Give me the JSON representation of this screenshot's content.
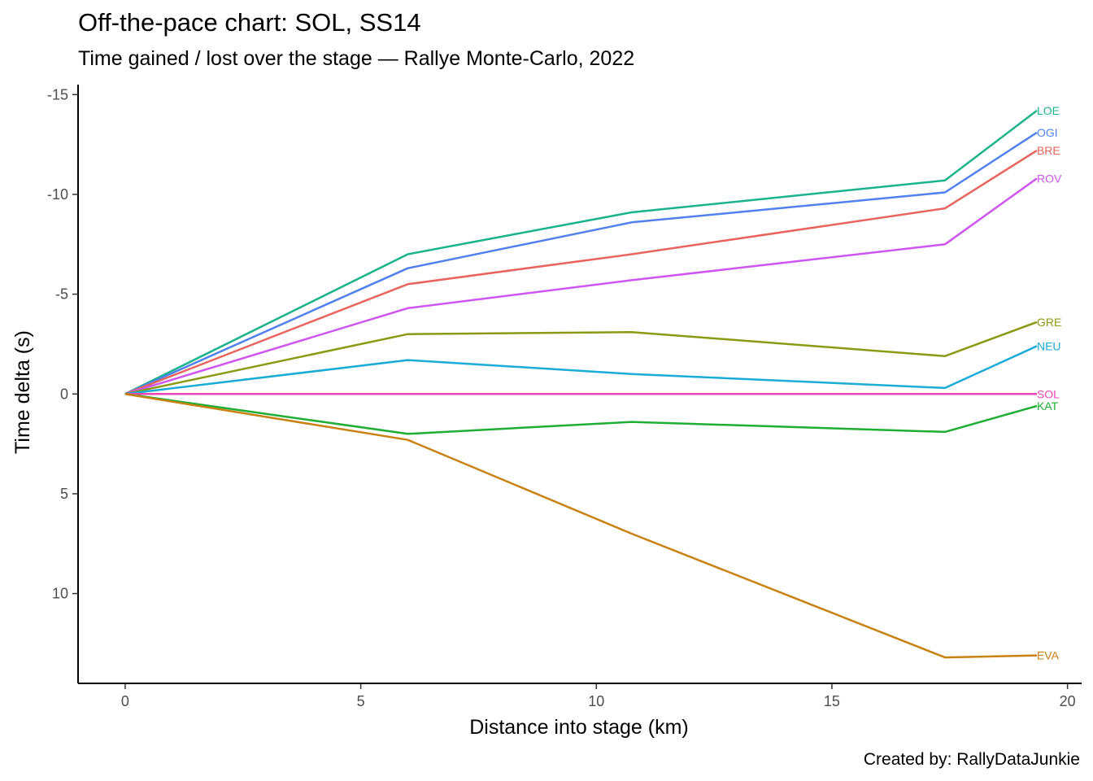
{
  "chart_data": {
    "type": "line",
    "title": "Off-the-pace chart: SOL, SS14",
    "subtitle": "Time gained / lost over the stage — Rallye Monte-Carlo, 2022",
    "caption": "Created by: RallyDataJunkie",
    "xlabel": "Distance into stage (km)",
    "ylabel": "Time delta (s)",
    "xlim": [
      -1,
      20.3
    ],
    "ylim": [
      14.5,
      -15.5
    ],
    "y_reversed": true,
    "x_ticks": [
      0,
      5,
      10,
      15,
      20
    ],
    "x_tick_labels": [
      "0",
      "5",
      "10",
      "15",
      "20"
    ],
    "y_ticks": [
      -15,
      -10,
      -5,
      0,
      5,
      10
    ],
    "y_tick_labels": [
      "-15",
      "-10",
      "-5",
      "0",
      "5",
      "10"
    ],
    "grid": false,
    "legend": "none",
    "x": [
      0,
      6,
      10.75,
      17.4,
      19.35
    ],
    "series": [
      {
        "name": "LOE",
        "color": "#1bb38c",
        "values": [
          0,
          -7.0,
          -9.1,
          -10.7,
          -14.2
        ]
      },
      {
        "name": "OGI",
        "color": "#5181ee",
        "values": [
          0,
          -6.3,
          -8.6,
          -10.1,
          -13.1
        ]
      },
      {
        "name": "BRE",
        "color": "#e8655e",
        "values": [
          0,
          -5.5,
          -7.0,
          -9.3,
          -12.2
        ]
      },
      {
        "name": "ROV",
        "color": "#cf55f0",
        "values": [
          0,
          -4.3,
          -5.7,
          -7.5,
          -10.8
        ]
      },
      {
        "name": "GRE",
        "color": "#8a9a12",
        "values": [
          0,
          -3.0,
          -3.1,
          -1.9,
          -3.6
        ]
      },
      {
        "name": "NEU",
        "color": "#1aabd7",
        "values": [
          0,
          -1.7,
          -1.0,
          -0.3,
          -2.4
        ]
      },
      {
        "name": "SOL",
        "color": "#ee45b5",
        "values": [
          0,
          0,
          0,
          0,
          0
        ]
      },
      {
        "name": "KAT",
        "color": "#1fad34",
        "values": [
          0,
          2.0,
          1.4,
          1.9,
          0.6
        ]
      },
      {
        "name": "EVA",
        "color": "#c98112",
        "values": [
          0,
          2.3,
          7.0,
          13.2,
          13.1
        ]
      }
    ]
  }
}
